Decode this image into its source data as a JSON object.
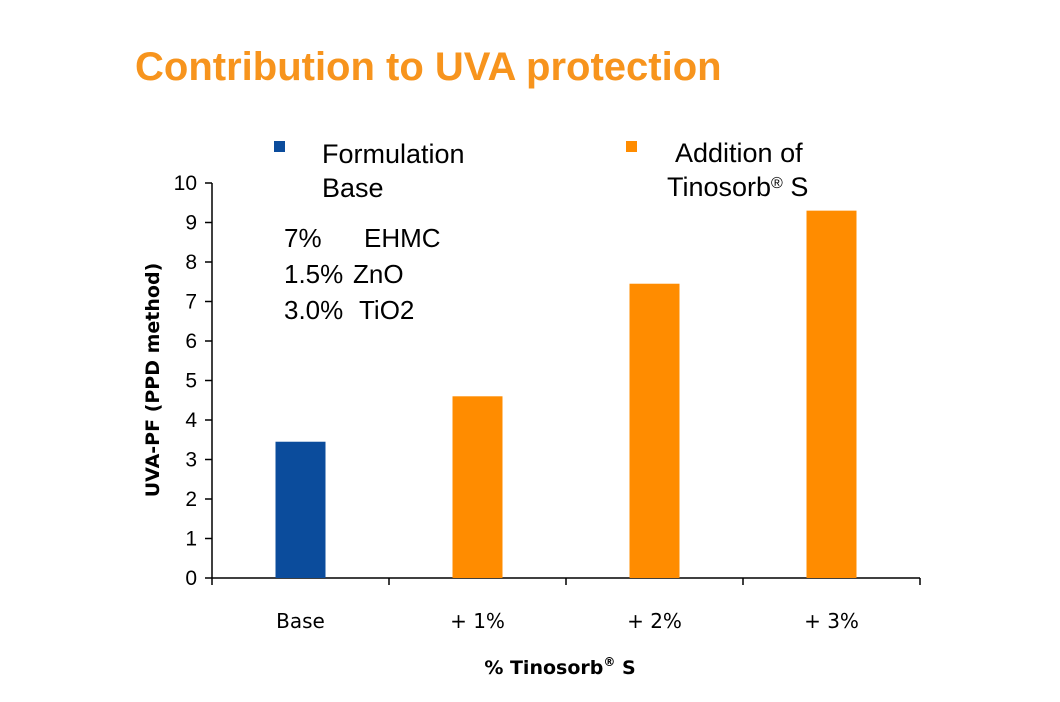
{
  "slide": {
    "title": "Contribution to UVA protection"
  },
  "colors": {
    "title": "#f7941d",
    "base": "#0b4c9c",
    "addition": "#ff8c00",
    "axis": "#000000"
  },
  "chart_data": {
    "type": "bar",
    "title": "Contribution to UVA protection",
    "categories": [
      "Base",
      "+ 1%",
      "+ 2%",
      "+ 3%"
    ],
    "values": [
      3.45,
      4.6,
      7.45,
      9.3
    ],
    "series_index": [
      0,
      1,
      1,
      1
    ],
    "series": [
      {
        "name": "Formulation Base",
        "legend_lines": [
          "Formulation",
          "Base"
        ]
      },
      {
        "name": "Addition of Tinosorb® S",
        "legend_lines": [
          "Addition of",
          "Tinosorb",
          "®",
          " S"
        ]
      }
    ],
    "xlabel": {
      "main": "% Tinosorb",
      "sup": "®",
      "tail": " S"
    },
    "ylabel": "UVA-PF (PPD method)",
    "ylim": [
      0,
      10
    ],
    "yticks": [
      "0",
      "1",
      "2",
      "3",
      "4",
      "5",
      "6",
      "7",
      "8",
      "9",
      "10"
    ],
    "annotation": [
      {
        "amount": "7%",
        "name": "EHMC"
      },
      {
        "amount": "1.5%",
        "name": "ZnO"
      },
      {
        "amount": "3.0%",
        "name": "TiO2"
      }
    ],
    "grid": false,
    "legend_position": "top"
  }
}
